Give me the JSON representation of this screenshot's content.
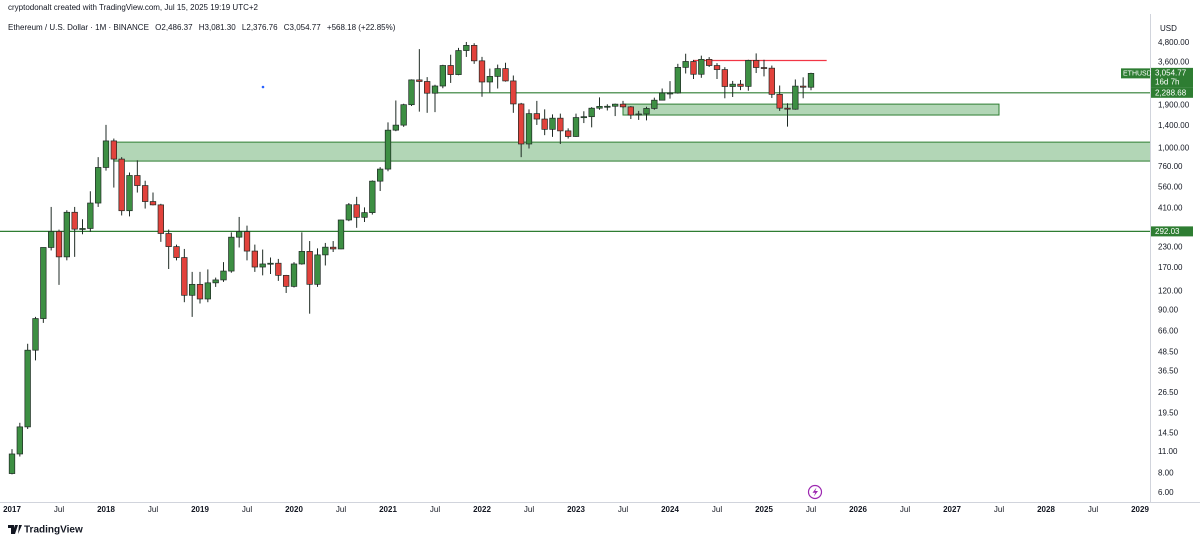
{
  "chart_data": {
    "type": "candlestick",
    "author_line": "cryptodonalt created with TradingView.com, Jul 15, 2025 19:19 UTC+2",
    "symbol": "Ethereum / U.S. Dollar · 1M · BINANCE",
    "ohlc_labels": [
      "O2,486.37",
      "H3,081.30",
      "L2,376.76",
      "C3,054.77"
    ],
    "change_label": "+568.18 (+22.85%)",
    "currency": "USD",
    "footer": "TradingView",
    "log_scale": true,
    "grid": false,
    "up_color": "#3d8f43",
    "down_color": "#e2423c",
    "x": [
      "2017-01",
      "2017-02",
      "2017-03",
      "2017-04",
      "2017-05",
      "2017-06",
      "2017-07",
      "2017-08",
      "2017-09",
      "2017-10",
      "2017-11",
      "2017-12",
      "2018-01",
      "2018-02",
      "2018-03",
      "2018-04",
      "2018-05",
      "2018-06",
      "2018-07",
      "2018-08",
      "2018-09",
      "2018-10",
      "2018-11",
      "2018-12",
      "2019-01",
      "2019-02",
      "2019-03",
      "2019-04",
      "2019-05",
      "2019-06",
      "2019-07",
      "2019-08",
      "2019-09",
      "2019-10",
      "2019-11",
      "2019-12",
      "2020-01",
      "2020-02",
      "2020-03",
      "2020-04",
      "2020-05",
      "2020-06",
      "2020-07",
      "2020-08",
      "2020-09",
      "2020-10",
      "2020-11",
      "2020-12",
      "2021-01",
      "2021-02",
      "2021-03",
      "2021-04",
      "2021-05",
      "2021-06",
      "2021-07",
      "2021-08",
      "2021-09",
      "2021-10",
      "2021-11",
      "2021-12",
      "2022-01",
      "2022-02",
      "2022-03",
      "2022-04",
      "2022-05",
      "2022-06",
      "2022-07",
      "2022-08",
      "2022-09",
      "2022-10",
      "2022-11",
      "2022-12",
      "2023-01",
      "2023-02",
      "2023-03",
      "2023-04",
      "2023-05",
      "2023-06",
      "2023-07",
      "2023-08",
      "2023-09",
      "2023-10",
      "2023-11",
      "2023-12",
      "2024-01",
      "2024-02",
      "2024-03",
      "2024-04",
      "2024-05",
      "2024-06",
      "2024-07",
      "2024-08",
      "2024-09",
      "2024-10",
      "2024-11",
      "2024-12",
      "2025-01",
      "2025-02",
      "2025-03",
      "2025-04",
      "2025-05",
      "2025-06",
      "2025-07"
    ],
    "open": [
      8.0,
      10.7,
      16.0,
      50,
      80,
      230,
      292,
      200,
      388,
      302,
      305,
      445,
      755,
      1120,
      855,
      397,
      670,
      577,
      455,
      433,
      283,
      233,
      198,
      113,
      133,
      107,
      136,
      142,
      162,
      268,
      291,
      218,
      172,
      180,
      182,
      152,
      129,
      180,
      217,
      133,
      206,
      231,
      225,
      346,
      434,
      360,
      386,
      616,
      737,
      1314,
      1416,
      1918,
      2772,
      2708,
      2275,
      2532,
      3434,
      3000,
      4288,
      4630,
      3680,
      2688,
      2920,
      3280,
      2730,
      1940,
      1070,
      1680,
      1550,
      1330,
      1570,
      1300,
      1196,
      1585,
      1605,
      1821,
      1870,
      1874,
      1934,
      1857,
      1645,
      1671,
      1814,
      2051,
      2282,
      2283,
      3340,
      3645,
      3014,
      3760,
      3433,
      3232,
      2513,
      2602,
      2518,
      3704,
      3332,
      3300,
      2237,
      1822,
      1794,
      2528,
      2486.37
    ],
    "high": [
      11.5,
      17.0,
      55,
      82,
      230,
      420,
      300,
      400,
      420,
      350,
      530,
      880,
      1420,
      1160,
      880,
      700,
      840,
      620,
      520,
      440,
      300,
      240,
      225,
      160,
      160,
      166,
      147,
      185,
      288,
      362,
      318,
      240,
      223,
      198,
      194,
      153,
      185,
      288,
      253,
      227,
      246,
      253,
      347,
      445,
      488,
      417,
      623,
      758,
      1476,
      2042,
      1946,
      2796,
      4380,
      2890,
      2580,
      3470,
      4030,
      4460,
      4870,
      4780,
      3900,
      3280,
      3480,
      3580,
      2960,
      1970,
      1790,
      2030,
      1790,
      1660,
      1680,
      1350,
      1680,
      1740,
      1850,
      2140,
      1930,
      1950,
      2030,
      1880,
      1750,
      1860,
      2130,
      2440,
      2720,
      3520,
      4090,
      3730,
      3975,
      3890,
      3560,
      3350,
      2730,
      2770,
      3740,
      4110,
      3740,
      3430,
      2550,
      1960,
      2790,
      2880,
      3081.3
    ],
    "low": [
      7.9,
      10.3,
      15.5,
      43,
      75,
      220,
      132,
      190,
      200,
      280,
      290,
      420,
      720,
      560,
      370,
      365,
      520,
      410,
      430,
      250,
      167,
      190,
      102,
      82,
      100,
      102,
      128,
      138,
      158,
      230,
      190,
      160,
      152,
      155,
      140,
      117,
      127,
      178,
      86,
      128,
      176,
      215,
      224,
      340,
      308,
      336,
      375,
      532,
      714,
      1294,
      1380,
      1880,
      1730,
      1700,
      1717,
      2450,
      2650,
      2970,
      3900,
      3520,
      2160,
      2300,
      2440,
      2700,
      1700,
      880,
      1000,
      1420,
      1220,
      1190,
      1070,
      1160,
      1190,
      1460,
      1370,
      1780,
      1760,
      1620,
      1820,
      1550,
      1530,
      1520,
      1780,
      2050,
      2100,
      2260,
      3050,
      2810,
      2860,
      3360,
      2810,
      2110,
      2150,
      2380,
      2360,
      3070,
      2920,
      2120,
      1750,
      1385,
      1780,
      2110,
      2376.76
    ],
    "close": [
      10.7,
      16.0,
      50,
      80,
      230,
      292,
      200,
      388,
      302,
      305,
      445,
      755,
      1120,
      855,
      397,
      670,
      577,
      455,
      433,
      283,
      233,
      198,
      113,
      133,
      107,
      136,
      142,
      162,
      268,
      291,
      218,
      172,
      180,
      182,
      152,
      129,
      180,
      217,
      133,
      206,
      231,
      225,
      346,
      434,
      360,
      386,
      616,
      737,
      1314,
      1416,
      1918,
      2772,
      2708,
      2275,
      2532,
      3434,
      3000,
      4288,
      4630,
      3680,
      2688,
      2920,
      3280,
      2730,
      1940,
      1070,
      1680,
      1550,
      1330,
      1570,
      1300,
      1196,
      1585,
      1605,
      1821,
      1870,
      1874,
      1934,
      1857,
      1645,
      1671,
      1814,
      2051,
      2282,
      2283,
      3340,
      3645,
      3014,
      3760,
      3433,
      3232,
      2513,
      2602,
      2518,
      3704,
      3332,
      3300,
      2237,
      1822,
      1794,
      2528,
      2486,
      3054.77
    ],
    "ylim": [
      5.4,
      6750
    ],
    "yticks": [
      {
        "value": 4800,
        "label": "4,800.00"
      },
      {
        "value": 3600,
        "label": "3,600.00"
      },
      {
        "value": 1900,
        "label": "1,900.00"
      },
      {
        "value": 1400,
        "label": "1,400.00"
      },
      {
        "value": 1000,
        "label": "1,000.00"
      },
      {
        "value": 760,
        "label": "760.00"
      },
      {
        "value": 560,
        "label": "560.00"
      },
      {
        "value": 410,
        "label": "410.00"
      },
      {
        "value": 230,
        "label": "230.00"
      },
      {
        "value": 170,
        "label": "170.00"
      },
      {
        "value": 120,
        "label": "120.00"
      },
      {
        "value": 90,
        "label": "90.00"
      },
      {
        "value": 66,
        "label": "66.00"
      },
      {
        "value": 48.5,
        "label": "48.50"
      },
      {
        "value": 36.5,
        "label": "36.50"
      },
      {
        "value": 26.5,
        "label": "26.50"
      },
      {
        "value": 19.5,
        "label": "19.50"
      },
      {
        "value": 14.5,
        "label": "14.50"
      },
      {
        "value": 11,
        "label": "11.00"
      },
      {
        "value": 8,
        "label": "8.00"
      },
      {
        "value": 6,
        "label": "6.00"
      }
    ],
    "xticks": [
      {
        "value": "2017-01",
        "label": "2017"
      },
      {
        "value": "2017-07",
        "label": "Jul"
      },
      {
        "value": "2018-01",
        "label": "2018"
      },
      {
        "value": "2018-07",
        "label": "Jul"
      },
      {
        "value": "2019-01",
        "label": "2019"
      },
      {
        "value": "2019-07",
        "label": "Jul"
      },
      {
        "value": "2020-01",
        "label": "2020"
      },
      {
        "value": "2020-07",
        "label": "Jul"
      },
      {
        "value": "2021-01",
        "label": "2021"
      },
      {
        "value": "2021-07",
        "label": "Jul"
      },
      {
        "value": "2022-01",
        "label": "2022"
      },
      {
        "value": "2022-07",
        "label": "Jul"
      },
      {
        "value": "2023-01",
        "label": "2023"
      },
      {
        "value": "2023-07",
        "label": "Jul"
      },
      {
        "value": "2024-01",
        "label": "2024"
      },
      {
        "value": "2024-07",
        "label": "Jul"
      },
      {
        "value": "2025-01",
        "label": "2025"
      },
      {
        "value": "2025-07",
        "label": "Jul"
      },
      {
        "value": "2026-01",
        "label": "2026"
      },
      {
        "value": "2026-07",
        "label": "Jul"
      },
      {
        "value": "2027-01",
        "label": "2027"
      },
      {
        "value": "2027-07",
        "label": "Jul"
      },
      {
        "value": "2028-01",
        "label": "2028"
      },
      {
        "value": "2028-07",
        "label": "Jul"
      },
      {
        "value": "2029-01",
        "label": "2029"
      }
    ],
    "price_tag": {
      "symbol": "ETHUSD",
      "value": 3054.77,
      "value_label": "3,054.77",
      "countdown": "16d 7h",
      "color": "#2e7d32"
    },
    "hlines": [
      {
        "value": 2288.68,
        "label": "2,288.68",
        "color": "#2e7d32",
        "from": "2021-07"
      },
      {
        "value": 292.03,
        "label": "292.03",
        "color": "#2e7d32",
        "from": "2016-11"
      },
      {
        "value": 3700,
        "color": "#f23645",
        "from": "2024-04",
        "to": "2025-09"
      }
    ],
    "zones": [
      {
        "low": 830,
        "high": 1100,
        "from": "2018-02",
        "color": "#a5cfa9",
        "border": "#2e7d32"
      },
      {
        "low": 1645,
        "high": 1935,
        "from": "2023-07",
        "to": "2027-07",
        "color": "#a5cfa9",
        "border": "#2e7d32"
      }
    ]
  }
}
